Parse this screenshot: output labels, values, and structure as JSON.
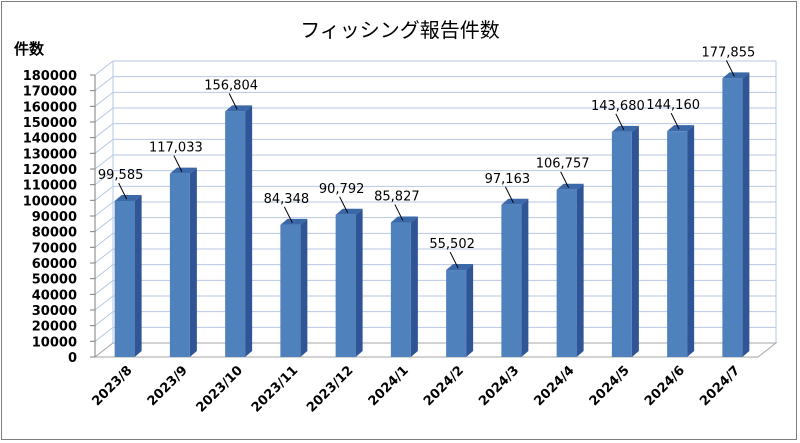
{
  "chart_data": {
    "type": "bar",
    "title": "フィッシング報告件数",
    "ylabel": "件数",
    "xlabel": "",
    "categories": [
      "2023/8",
      "2023/9",
      "2023/10",
      "2023/11",
      "2023/12",
      "2024/1",
      "2024/2",
      "2024/3",
      "2024/4",
      "2024/5",
      "2024/6",
      "2024/7"
    ],
    "values": [
      99585,
      117033,
      156804,
      84348,
      90792,
      85827,
      55502,
      97163,
      106757,
      143680,
      144160,
      177855
    ],
    "data_labels": [
      "99,585",
      "117,033",
      "156,804",
      "84,348",
      "90,792",
      "85,827",
      "55,502",
      "97,163",
      "106,757",
      "143,680",
      "144,160",
      "177,855"
    ],
    "ylim": [
      0,
      180000
    ],
    "yticks": [
      0,
      10000,
      20000,
      30000,
      40000,
      50000,
      60000,
      70000,
      80000,
      90000,
      100000,
      110000,
      120000,
      130000,
      140000,
      150000,
      160000,
      170000,
      180000
    ],
    "grid": true,
    "legend": "none",
    "bar_color": "#4f81bd",
    "bar_side_color": "#2f5597",
    "bar_top_color": "#3a68a8",
    "grid_color": "#b7c7e6",
    "projection_3d": true
  }
}
